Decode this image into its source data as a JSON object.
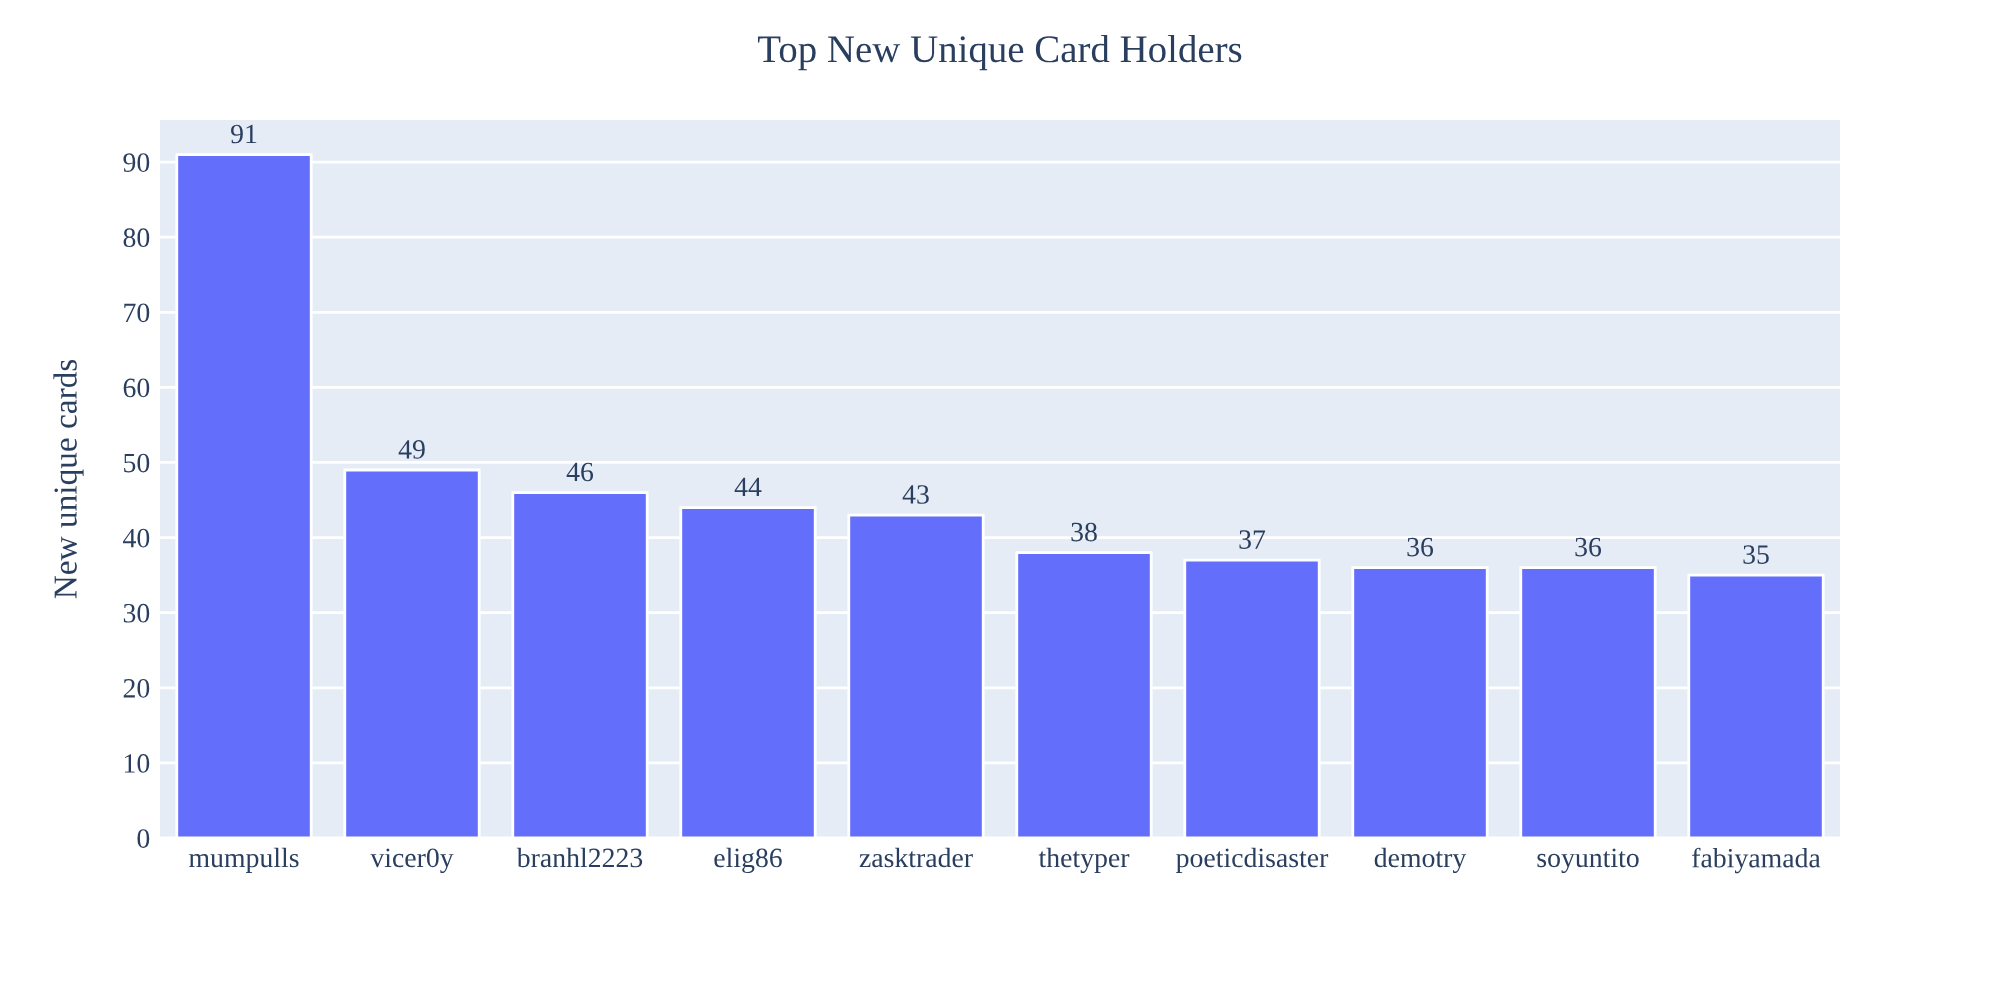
{
  "chart_data": {
    "type": "bar",
    "title": "Top New Unique Card Holders",
    "ylabel": "New unique cards",
    "categories": [
      "mumpulls",
      "vicer0y",
      "branhl2223",
      "elig86",
      "zasktrader",
      "thetyper",
      "poeticdisaster",
      "demotry",
      "soyuntito",
      "fabiyamada"
    ],
    "values": [
      91,
      49,
      46,
      44,
      43,
      38,
      37,
      36,
      36,
      35
    ],
    "color": "#636efa",
    "ylim": [
      0,
      95.6
    ],
    "yticks": [
      0,
      10,
      20,
      30,
      40,
      50,
      60,
      70,
      80,
      90
    ],
    "grid": "y",
    "data_labels": true
  }
}
